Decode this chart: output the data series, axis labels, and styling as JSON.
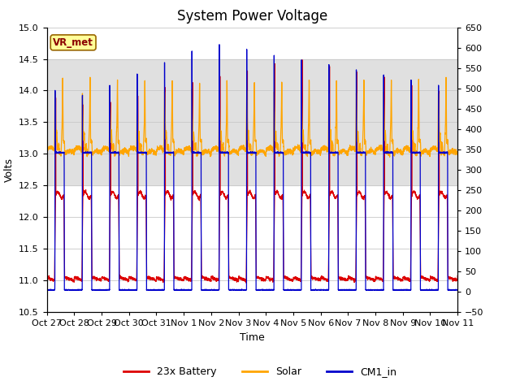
{
  "title": "System Power Voltage",
  "xlabel": "Time",
  "ylabel_left": "Volts",
  "ylim_left": [
    10.5,
    15.0
  ],
  "ylim_right": [
    -50,
    650
  ],
  "yticks_left": [
    10.5,
    11.0,
    11.5,
    12.0,
    12.5,
    13.0,
    13.5,
    14.0,
    14.5,
    15.0
  ],
  "yticks_right": [
    -50,
    0,
    50,
    100,
    150,
    200,
    250,
    300,
    350,
    400,
    450,
    500,
    550,
    600,
    650
  ],
  "x_labels": [
    "Oct 27",
    "Oct 28",
    "Oct 29",
    "Oct 30",
    "Oct 31",
    "Nov 1",
    "Nov 2",
    "Nov 3",
    "Nov 4",
    "Nov 5",
    "Nov 6",
    "Nov 7",
    "Nov 8",
    "Nov 9",
    "Nov 10",
    "Nov 11"
  ],
  "num_days": 15,
  "background_color": "#ffffff",
  "grid_color": "#c8c8c8",
  "band_color": "#e0e0e0",
  "battery_color": "#dd0000",
  "solar_color": "#ffa500",
  "cm1_color": "#0000cc",
  "vr_box_color": "#ffff99",
  "vr_text_color": "#8b0000",
  "vr_border_color": "#996600",
  "legend_labels": [
    "23x Battery",
    "Solar",
    "CM1_in"
  ],
  "title_fontsize": 12,
  "label_fontsize": 9,
  "tick_fontsize": 8
}
